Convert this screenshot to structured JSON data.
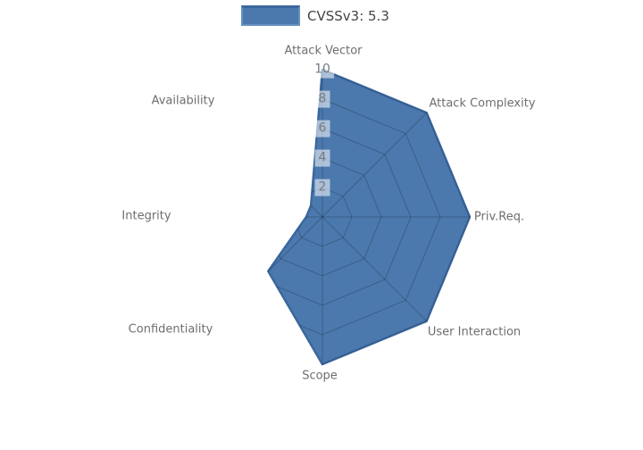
{
  "legend": {
    "label": "CVSSv3: 5.3"
  },
  "chart_data": {
    "type": "radar",
    "title": "",
    "categories": [
      "Attack Vector",
      "Attack Complexity",
      "Priv.Req.",
      "User Interaction",
      "Scope",
      "Confidentiality",
      "Integrity",
      "Availability"
    ],
    "series": [
      {
        "name": "CVSSv3: 5.3",
        "values": [
          10,
          10,
          10,
          10,
          10,
          5.2,
          1.1,
          1.1
        ]
      }
    ],
    "radial_axis": {
      "min": 0,
      "max": 10,
      "ticks": [
        2,
        4,
        6,
        8,
        10
      ]
    },
    "legend_position": "top-center",
    "grid": "spider-web rings and spokes, visible only over the filled area",
    "colors": {
      "fill": "#4b79ad",
      "outline": "#3b679d",
      "grid_line": "rgba(0,0,0,0.22)",
      "axis_label": "#6e6e6e",
      "tick_label": "#757b84",
      "tick_label_bg": "rgba(255,255,255,0.55)",
      "legend_text": "#444444"
    }
  }
}
